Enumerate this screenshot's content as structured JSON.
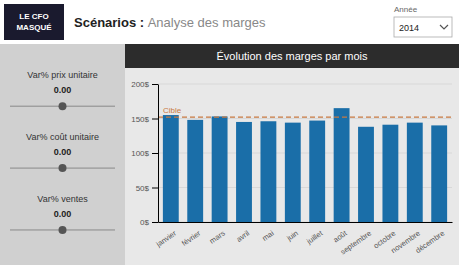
{
  "chart_data": {
    "type": "bar",
    "title": "Évolution des marges par mois",
    "categories": [
      "janvier",
      "février",
      "mars",
      "avril",
      "mai",
      "juin",
      "juillet",
      "août",
      "septembre",
      "octobre",
      "novembre",
      "décembre"
    ],
    "values": [
      155,
      148,
      153,
      145,
      146,
      144,
      147,
      165,
      138,
      141,
      144,
      140
    ],
    "color": "#1a6ea8",
    "ylim": [
      0,
      200
    ],
    "yticks": [
      {
        "value": 0,
        "label": "0$"
      },
      {
        "value": 50,
        "label": "50$"
      },
      {
        "value": 100,
        "label": "100$"
      },
      {
        "value": 150,
        "label": "150$"
      },
      {
        "value": 200,
        "label": "200$"
      }
    ],
    "grid": true,
    "annotations": [
      {
        "type": "hline",
        "y": 152,
        "label": "Cible",
        "color": "#c87941",
        "line_style": "dashed"
      }
    ]
  },
  "page": {
    "title_bold": "Scénarios : ",
    "title_normal": "Analyse des marges",
    "logo": [
      "LE CFO",
      "MASQUÉ"
    ],
    "year_label": "Année",
    "year": "2014",
    "sliders": [
      {
        "label": "Var% prix unitaire",
        "value": "0.00"
      },
      {
        "label": "Var% coût unitaire",
        "value": "0.00"
      },
      {
        "label": "Var% ventes",
        "value": "0.00"
      }
    ]
  }
}
